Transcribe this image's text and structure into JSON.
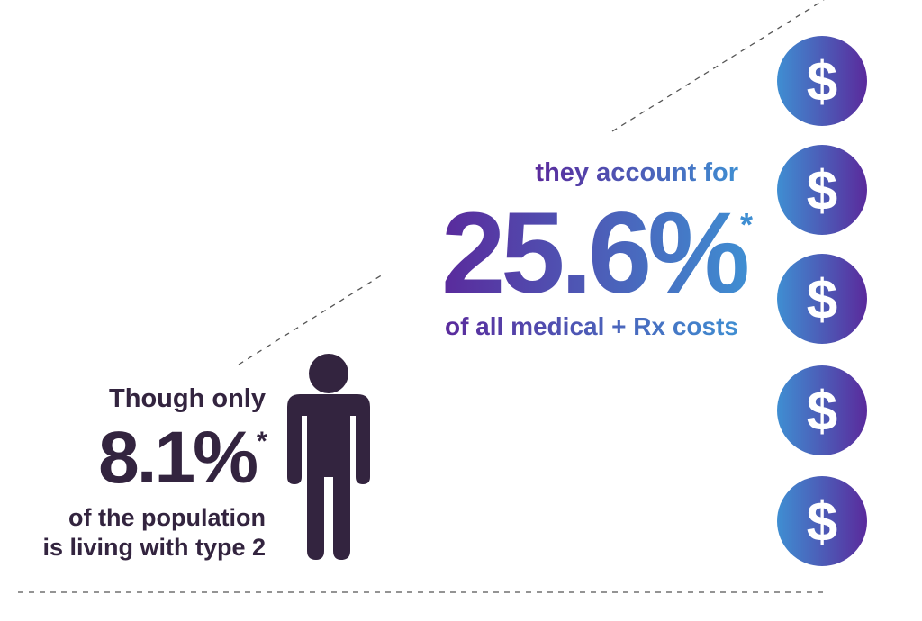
{
  "left": {
    "intro": "Though only",
    "stat": "8.1%",
    "footnote_mark": "*",
    "line1": "of the population",
    "line2": "is living with type 2"
  },
  "right": {
    "intro": "they account for",
    "stat": "25.6%",
    "footnote_mark": "*",
    "outro": "of all medical + Rx costs"
  },
  "coins": [
    "$",
    "$",
    "$",
    "$",
    "$"
  ]
}
